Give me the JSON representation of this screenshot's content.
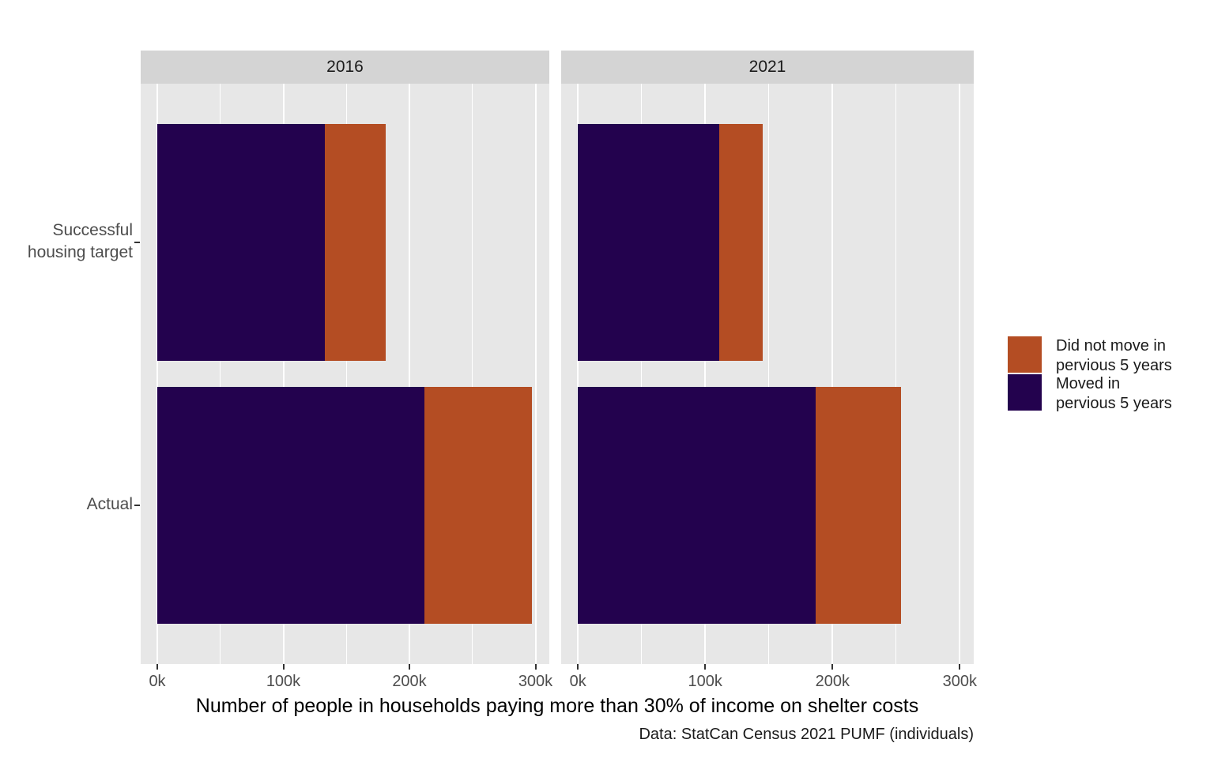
{
  "chart_data": {
    "type": "bar",
    "orientation": "horizontal",
    "stacked": true,
    "xlabel": "Number of people in households paying more than 30% of income on shelter costs",
    "caption": "Data: StatCan Census 2021 PUMF (individuals)",
    "categories": [
      "Successful housing target",
      "Actual"
    ],
    "category_labels": [
      {
        "lines": [
          "Successful",
          "housing target"
        ]
      },
      {
        "lines": [
          "Actual"
        ]
      }
    ],
    "x_ticks": [
      "0k",
      "100k",
      "200k",
      "300k"
    ],
    "x_tick_values": [
      0,
      100000,
      200000,
      300000
    ],
    "x_minor_tick_values": [
      50000,
      150000,
      250000
    ],
    "xlim": [
      0,
      300000
    ],
    "grid": true,
    "legend_position": "right",
    "colors": {
      "Moved in pervious 5 years": "#23024E",
      "Did not move in pervious 5 years": "#B44D23"
    },
    "panel_bg": "#E7E7E7",
    "strip_bg": "#D4D4D4",
    "legend": [
      {
        "series": "Did not move in pervious 5 years",
        "color": "#B44D23",
        "lines": [
          "Did not move in",
          "pervious 5 years"
        ]
      },
      {
        "series": "Moved in pervious 5 years",
        "color": "#23024E",
        "lines": [
          "Moved in",
          "pervious 5 years"
        ]
      }
    ],
    "facets": [
      {
        "label": "2016",
        "bars": [
          {
            "category": "Successful housing target",
            "segments": [
              {
                "series": "Moved in pervious 5 years",
                "value": 133000
              },
              {
                "series": "Did not move in pervious 5 years",
                "value": 48000
              }
            ]
          },
          {
            "category": "Actual",
            "segments": [
              {
                "series": "Moved in pervious 5 years",
                "value": 212000
              },
              {
                "series": "Did not move in pervious 5 years",
                "value": 85000
              }
            ]
          }
        ]
      },
      {
        "label": "2021",
        "bars": [
          {
            "category": "Successful housing target",
            "segments": [
              {
                "series": "Moved in pervious 5 years",
                "value": 111000
              },
              {
                "series": "Did not move in pervious 5 years",
                "value": 34000
              }
            ]
          },
          {
            "category": "Actual",
            "segments": [
              {
                "series": "Moved in pervious 5 years",
                "value": 187000
              },
              {
                "series": "Did not move in pervious 5 years",
                "value": 67000
              }
            ]
          }
        ]
      }
    ]
  }
}
